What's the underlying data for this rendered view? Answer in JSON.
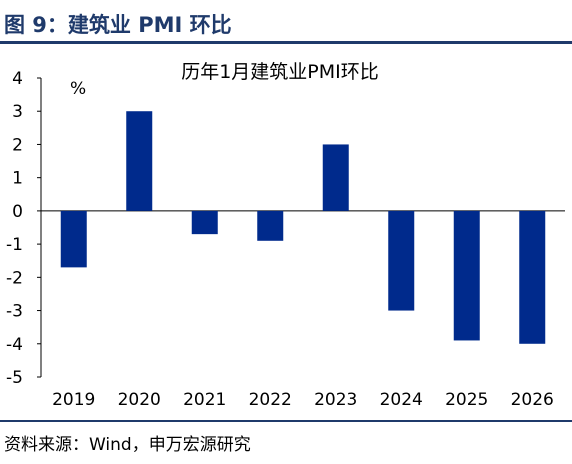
{
  "figure": {
    "title": "图 9：建筑业 PMI 环比",
    "source": "资料来源：Wind，申万宏源研究"
  },
  "colors": {
    "bar": "#002a8c",
    "rule": "#1f3a6b"
  },
  "chart_data": {
    "type": "bar",
    "title": "历年1月建筑业PMI环比",
    "unit": "%",
    "xlabel": "",
    "ylabel": "",
    "categories": [
      "2019",
      "2020",
      "2021",
      "2022",
      "2023",
      "2024",
      "2025",
      "2026"
    ],
    "values": [
      -1.7,
      3.0,
      -0.7,
      -0.9,
      2.0,
      -3.0,
      -3.9,
      -4.0
    ],
    "ylim": [
      -5,
      4
    ],
    "yticks": [
      4,
      3,
      2,
      1,
      0,
      -1,
      -2,
      -3,
      -4,
      -5
    ],
    "grid": false,
    "legend": "none"
  }
}
